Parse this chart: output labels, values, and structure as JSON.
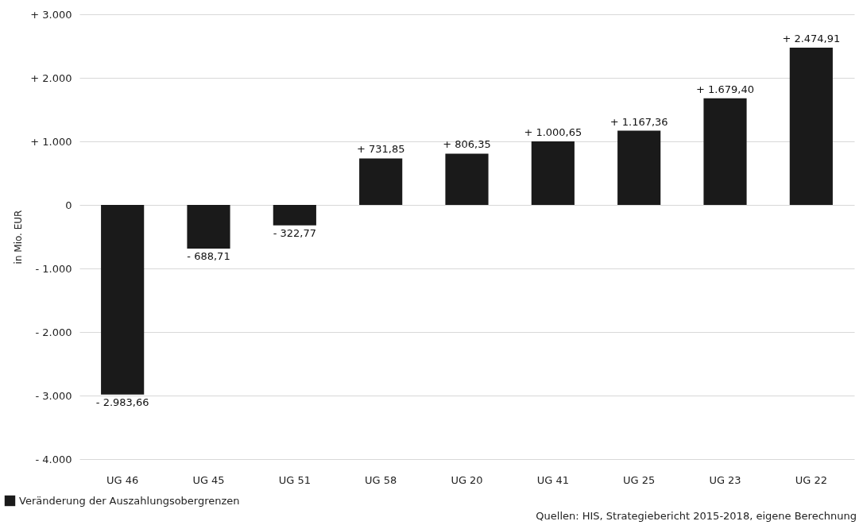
{
  "chart_data": {
    "type": "bar",
    "ylabel": "in Mio. EUR",
    "categories": [
      "UG 46",
      "UG 45",
      "UG 51",
      "UG 58",
      "UG 20",
      "UG 41",
      "UG 25",
      "UG 23",
      "UG 22"
    ],
    "series": [
      {
        "name": "Veränderung der Auszahlungsobergrenzen",
        "color": "#1a1a1a",
        "values": [
          -2983.66,
          -688.71,
          -322.77,
          731.85,
          806.35,
          1000.65,
          1167.36,
          1679.4,
          2474.91
        ],
        "value_labels": [
          "- 2.983,66",
          "- 688,71",
          "- 322,77",
          "+ 731,85",
          "+ 806,35",
          "+ 1.000,65",
          "+ 1.167,36",
          "+ 1.679,40",
          "+ 2.474,91"
        ]
      }
    ],
    "ylim": [
      -4000,
      3000
    ],
    "yticks": [
      {
        "value": -4000,
        "label": "- 4.000"
      },
      {
        "value": -3000,
        "label": "- 3.000"
      },
      {
        "value": -2000,
        "label": "- 2.000"
      },
      {
        "value": -1000,
        "label": "- 1.000"
      },
      {
        "value": 0,
        "label": "0"
      },
      {
        "value": 1000,
        "label": "+ 1.000"
      },
      {
        "value": 2000,
        "label": "+ 2.000"
      },
      {
        "value": 3000,
        "label": "+ 3.000"
      }
    ],
    "grid": "y",
    "legend": "bottom left",
    "annotations": [
      "Quellen: HIS, Strategiebericht 2015-2018, eigene Berechnung"
    ]
  }
}
